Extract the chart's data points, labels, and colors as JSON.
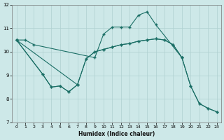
{
  "xlabel": "Humidex (Indice chaleur)",
  "bg_color": "#cde8e8",
  "grid_color": "#afd0d0",
  "line_color": "#1a6e65",
  "xlim": [
    -0.5,
    23.5
  ],
  "ylim": [
    7,
    12
  ],
  "xticks": [
    0,
    1,
    2,
    3,
    4,
    5,
    6,
    7,
    8,
    9,
    10,
    11,
    12,
    13,
    14,
    15,
    16,
    17,
    18,
    19,
    20,
    21,
    22,
    23
  ],
  "yticks": [
    7,
    8,
    9,
    10,
    11,
    12
  ],
  "series1_x": [
    0,
    1,
    2,
    9,
    10,
    11,
    12,
    13,
    14,
    15,
    16,
    19
  ],
  "series1_y": [
    10.5,
    10.5,
    10.3,
    9.75,
    10.75,
    11.05,
    11.05,
    11.05,
    11.55,
    11.7,
    11.15,
    9.75
  ],
  "series2_x": [
    0,
    3,
    4,
    5,
    6,
    7
  ],
  "series2_y": [
    10.5,
    9.05,
    8.5,
    8.55,
    8.3,
    8.6
  ],
  "series3_x": [
    0,
    7,
    8,
    9,
    10,
    11,
    12,
    13,
    14,
    15,
    16,
    17,
    18,
    19,
    20,
    21,
    22,
    23
  ],
  "series3_y": [
    10.5,
    8.6,
    9.7,
    10.0,
    10.1,
    10.2,
    10.3,
    10.35,
    10.45,
    10.5,
    10.55,
    10.5,
    10.3,
    9.75,
    8.55,
    7.8,
    7.6,
    7.45
  ],
  "series4_x": [
    0,
    3,
    4,
    5,
    6,
    7,
    8,
    9,
    10,
    11,
    12,
    13,
    14,
    15,
    16,
    17,
    18,
    19,
    20,
    21,
    22,
    23
  ],
  "series4_y": [
    10.5,
    9.05,
    8.5,
    8.55,
    8.3,
    8.6,
    9.7,
    10.0,
    10.1,
    10.2,
    10.3,
    10.35,
    10.45,
    10.5,
    10.55,
    10.5,
    10.3,
    9.75,
    8.55,
    7.8,
    7.6,
    7.45
  ]
}
